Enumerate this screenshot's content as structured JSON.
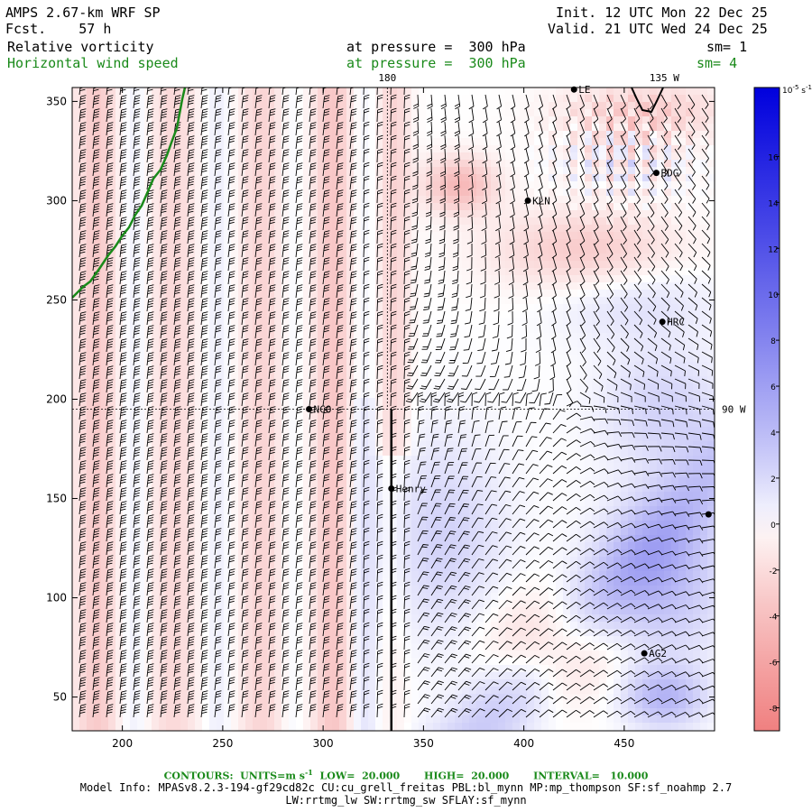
{
  "header": {
    "model_line": "AMPS 2.67-km WRF SP",
    "fcst_label": "Fcst.",
    "fcst_value": "57 h",
    "init_label": "Init.",
    "init_value": "12 UTC Mon 22 Dec 25",
    "valid_label": "Valid.",
    "valid_value": "21 UTC Wed 24 Dec 25",
    "field1_name": "Relative vorticity",
    "field1_level": "at pressure =  300 hPa",
    "field1_smooth": "sm= 1",
    "field2_name": "Horizontal wind speed",
    "field2_level": "at pressure =  300 hPa",
    "field2_smooth": "sm= 4"
  },
  "map": {
    "x_ticks": [
      200,
      250,
      300,
      350,
      400,
      450
    ],
    "y_ticks": [
      50,
      100,
      150,
      200,
      250,
      300,
      350
    ],
    "x_range": [
      175,
      495
    ],
    "y_range": [
      33,
      357
    ],
    "longitude_labels": [
      {
        "text": "180",
        "x": 332,
        "y": 357,
        "anchor": "top"
      },
      {
        "text": "135 W",
        "x": 470,
        "y": 357,
        "anchor": "top"
      },
      {
        "text": "90 W",
        "x": 495,
        "y": 195,
        "anchor": "right"
      }
    ],
    "stations": [
      {
        "name": "NCO",
        "x": 293,
        "y": 195
      },
      {
        "name": "Henry",
        "x": 334,
        "y": 155
      },
      {
        "name": "KLN",
        "x": 402,
        "y": 300
      },
      {
        "name": "BDG",
        "x": 466,
        "y": 314
      },
      {
        "name": "HRC",
        "x": 469,
        "y": 239
      },
      {
        "name": "AG2",
        "x": 460,
        "y": 72
      },
      {
        "name": "LE",
        "x": 425,
        "y": 356
      },
      {
        "name": "",
        "x": 492,
        "y": 142
      }
    ]
  },
  "colorbar": {
    "unit_label": "10",
    "unit_exp": "-5",
    "unit_tail": " s",
    "unit_tail_exp": "-1",
    "ticks": [
      16,
      14,
      12,
      10,
      8,
      6,
      4,
      2,
      0,
      -2,
      -4,
      -6,
      -8
    ],
    "range": [
      -9,
      19
    ],
    "color_high": "#0000dd",
    "color_zero": "#ffffff",
    "color_low": "#f08080"
  },
  "colors": {
    "barb": "#000000",
    "coast": "#1a8a1a",
    "green_text": "#1a8a1a"
  },
  "footer": {
    "contours_line": "CONTOURS:  UNITS=m s",
    "contours_exp": "-1",
    "contours_rest": "  LOW=  20.000       HIGH=  20.000       INTERVAL=   10.000",
    "model_info": "Model Info: MPASv8.2.3-194-gf29cd82c CU:cu_grell_freitas PBL:bl_mynn MP:mp_thompson SF:sf_noahmp 2.7",
    "model_info2": "LW:rrtmg_lw SW:rrtmg_sw SFLAY:sf_mynn"
  }
}
